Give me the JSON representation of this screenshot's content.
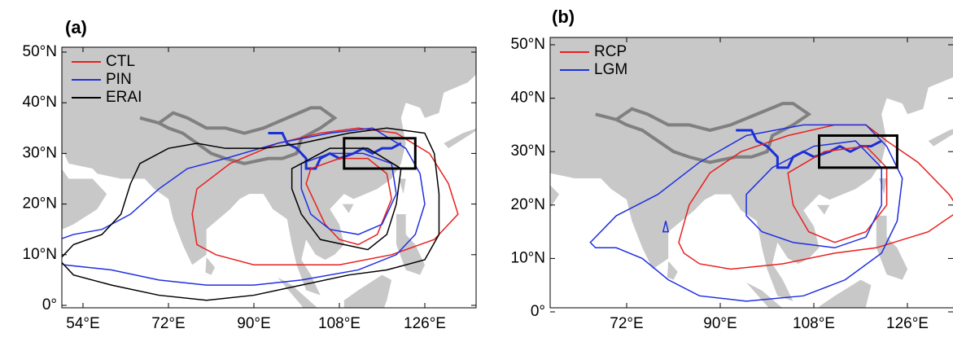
{
  "panels": [
    {
      "label": "(a)",
      "yticks": [
        "50°N",
        "40°N",
        "30°N",
        "20°N",
        "10°N",
        "0°"
      ],
      "xticks": [
        "54°E",
        "72°E",
        "90°E",
        "108°E",
        "126°E"
      ],
      "legend": [
        {
          "name": "CTL",
          "color": "#e8201f"
        },
        {
          "name": "PIN",
          "color": "#1f2fe0"
        },
        {
          "name": "ERAI",
          "color": "#000000"
        }
      ]
    },
    {
      "label": "(b)",
      "yticks": [
        "50°N",
        "40°N",
        "30°N",
        "20°N",
        "10°N",
        "0°"
      ],
      "xticks": [
        "72°E",
        "90°E",
        "108°E",
        "126°E"
      ],
      "legend": [
        {
          "name": "RCP",
          "color": "#e8201f"
        },
        {
          "name": "LGM",
          "color": "#1f2fe0"
        }
      ]
    }
  ]
}
